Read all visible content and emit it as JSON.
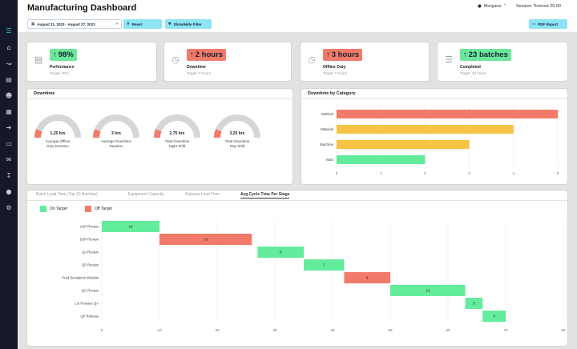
{
  "header": {
    "title": "Manufacturing Dashboard",
    "user": "Morgane",
    "session_timeout": "Session Timeout 25:00",
    "date_range": "August 21, 2023 - August 27, 2023",
    "reset_label": "Reset",
    "filter_label": "Show/Hide Filter",
    "pdf_label": "PDF Report"
  },
  "sidebar": {
    "icons": [
      "menu-icon",
      "home-icon",
      "chart-icon",
      "bar-chart-icon",
      "person-icon",
      "calendar-icon",
      "login-icon",
      "document-icon",
      "chat-icon",
      "download-icon",
      "user-icon",
      "settings-icon"
    ]
  },
  "kpis": [
    {
      "value": "98%",
      "label": "Performance",
      "target": "Target: 90%",
      "status": "good",
      "icon": "bar-chart-icon"
    },
    {
      "value": "2 hours",
      "label": "Downtime",
      "target": "Target: 0 hours",
      "status": "bad",
      "icon": "clock-icon"
    },
    {
      "value": "3 hours",
      "label": "Offline Duty",
      "target": "Target: 0 hours",
      "status": "bad",
      "icon": "clock-icon"
    },
    {
      "value": "23 batches",
      "label": "Completed",
      "target": "Target: 20 hours",
      "status": "good",
      "icon": "layers-icon"
    }
  ],
  "downtime": {
    "title": "Downtime",
    "gauges": [
      {
        "value": "1.25 hrs",
        "label": "Average Offline Duty Duration",
        "label_lines": [
          "Average Offline",
          "Duty Duration"
        ],
        "fraction": 0.12
      },
      {
        "value": "3 hrs",
        "label": "Average Downtime Duration",
        "label_lines": [
          "Average Downtime",
          "Duration"
        ],
        "fraction": 0.12
      },
      {
        "value": "2.75 hrs",
        "label": "Total Downtime Night Shift",
        "label_lines": [
          "Total Downtime",
          "Night Shift"
        ],
        "fraction": 0.12
      },
      {
        "value": "3.25 hrs",
        "label": "Total Downtime Day Shift",
        "label_lines": [
          "Total Downtime",
          "Day Shift"
        ],
        "fraction": 0.12
      }
    ]
  },
  "category_chart": {
    "title": "Downtime by Category"
  },
  "tabs": {
    "items": [
      "Batch Lead Time (Top 10 Batches)",
      "Equipment Capacity",
      "Release Lead Time",
      "Avg Cycle Time Per Stage"
    ],
    "active": 3
  },
  "legend": {
    "on_target": "On Target",
    "off_target": "Off Target",
    "on_color": "#63ec9b",
    "off_color": "#f27a6a"
  },
  "colors": {
    "good": "#6ce89a",
    "bad": "#f27a6a",
    "yellow": "#f6c344",
    "gauge_track": "#d6d6d6",
    "sidebar": "#15182a",
    "accent": "#8ee3f5"
  },
  "chart_data": [
    {
      "type": "bar",
      "orientation": "horizontal",
      "title": "Downtime by Category",
      "categories": [
        "Method",
        "Material",
        "Machine",
        "Man"
      ],
      "values": [
        5,
        4,
        3,
        2
      ],
      "colors": [
        "#f27a6a",
        "#f6c344",
        "#f6c344",
        "#63ec9b"
      ],
      "xlim": [
        0,
        5
      ],
      "xticks": [
        0,
        1,
        2,
        3,
        4,
        5
      ]
    },
    {
      "type": "bar",
      "orientation": "horizontal",
      "subtype": "gantt",
      "title": "Avg Cycle Time Per Stage",
      "categories": [
        "USP Review",
        "DSP Review",
        "QA Review",
        "QP Review",
        "Prod Deviations Window",
        "QC Review",
        "Lot Release QA",
        "QP Release"
      ],
      "starts": [
        0,
        10,
        27,
        35,
        42,
        50,
        63,
        66
      ],
      "durations": [
        10,
        16,
        8,
        7,
        8,
        13,
        3,
        4
      ],
      "status": [
        "on",
        "off",
        "on",
        "on",
        "off",
        "on",
        "on",
        "on"
      ],
      "xlim": [
        0,
        80
      ],
      "xticks": [
        0,
        10,
        20,
        30,
        40,
        50,
        60,
        70,
        80
      ]
    }
  ]
}
